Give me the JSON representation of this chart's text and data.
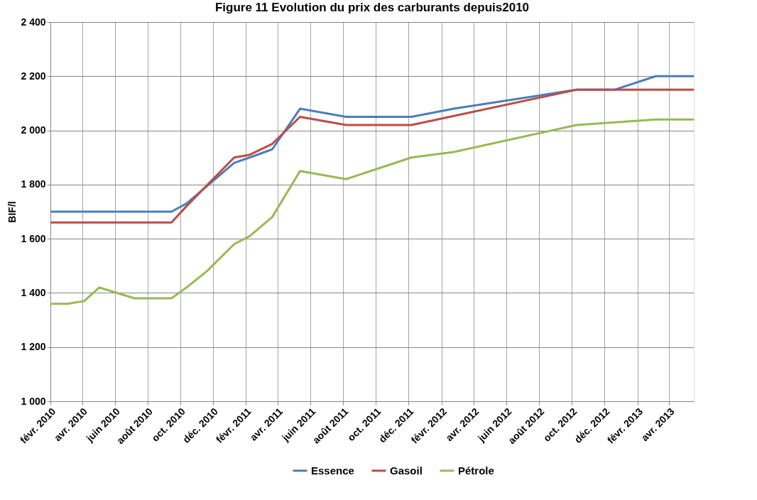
{
  "chart_data": {
    "type": "line",
    "title": "Figure 11 Evolution du prix des carburants depuis2010",
    "ylabel": "BIF/l",
    "xlim": [
      "2010-02-01",
      "2013-05-17"
    ],
    "xticks": [
      {
        "value": "2010-02-01",
        "label": "févr. 2010"
      },
      {
        "value": "2010-04-01",
        "label": "avr. 2010"
      },
      {
        "value": "2010-06-01",
        "label": "juin 2010"
      },
      {
        "value": "2010-08-01",
        "label": "août 2010"
      },
      {
        "value": "2010-10-01",
        "label": "oct. 2010"
      },
      {
        "value": "2010-12-01",
        "label": "déc. 2010"
      },
      {
        "value": "2011-02-01",
        "label": "févr. 2011"
      },
      {
        "value": "2011-04-01",
        "label": "avr. 2011"
      },
      {
        "value": "2011-06-01",
        "label": "juin 2011"
      },
      {
        "value": "2011-08-01",
        "label": "août 2011"
      },
      {
        "value": "2011-10-01",
        "label": "oct. 2011"
      },
      {
        "value": "2011-12-01",
        "label": "déc. 2011"
      },
      {
        "value": "2012-02-01",
        "label": "févr. 2012"
      },
      {
        "value": "2012-04-01",
        "label": "avr. 2012"
      },
      {
        "value": "2012-06-01",
        "label": "juin 2012"
      },
      {
        "value": "2012-08-01",
        "label": "août 2012"
      },
      {
        "value": "2012-10-01",
        "label": "oct. 2012"
      },
      {
        "value": "2012-12-01",
        "label": "déc. 2012"
      },
      {
        "value": "2013-02-01",
        "label": "févr. 2013"
      },
      {
        "value": "2013-04-01",
        "label": "avr. 2013"
      }
    ],
    "ylim": [
      1000,
      2400
    ],
    "yticks": [
      {
        "value": 1000,
        "label": "1 000"
      },
      {
        "value": 1200,
        "label": "1 200"
      },
      {
        "value": 1400,
        "label": "1 400"
      },
      {
        "value": 1600,
        "label": "1 600"
      },
      {
        "value": 1800,
        "label": "1 800"
      },
      {
        "value": 2000,
        "label": "2 000"
      },
      {
        "value": 2200,
        "label": "2 200"
      },
      {
        "value": 2400,
        "label": "2 400"
      }
    ],
    "grid": true,
    "legend": "bottom",
    "marker": "none",
    "line_style": "solid",
    "series": [
      {
        "name": "Essence",
        "color": "#4a7ebb",
        "x": [
          "2010-02-01",
          "2010-09-15",
          "2010-10-13",
          "2011-01-10",
          "2011-02-08",
          "2011-03-22",
          "2011-05-13",
          "2011-08-07",
          "2011-12-07",
          "2012-02-24",
          "2012-10-10",
          "2012-12-20",
          "2013-03-07",
          "2013-05-17"
        ],
        "values": [
          1700,
          1700,
          1730,
          1880,
          1900,
          1930,
          2080,
          2050,
          2050,
          2080,
          2150,
          2150,
          2200,
          2200
        ]
      },
      {
        "name": "Gasoil",
        "color": "#be4b48",
        "x": [
          "2010-02-01",
          "2010-09-15",
          "2010-10-13",
          "2011-01-10",
          "2011-02-08",
          "2011-03-22",
          "2011-05-13",
          "2011-08-07",
          "2011-12-07",
          "2012-10-10",
          "2013-05-17"
        ],
        "values": [
          1660,
          1660,
          1720,
          1900,
          1910,
          1950,
          2050,
          2020,
          2020,
          2150,
          2150
        ]
      },
      {
        "name": "Pétrole",
        "color": "#98b954",
        "x": [
          "2010-02-01",
          "2010-03-05",
          "2010-04-05",
          "2010-05-03",
          "2010-07-08",
          "2010-09-15",
          "2010-10-13",
          "2010-11-20",
          "2011-01-10",
          "2011-02-08",
          "2011-03-22",
          "2011-05-13",
          "2011-08-07",
          "2011-12-07",
          "2012-02-24",
          "2012-10-10",
          "2013-03-07",
          "2013-05-17"
        ],
        "values": [
          1360,
          1360,
          1370,
          1420,
          1380,
          1380,
          1420,
          1480,
          1580,
          1610,
          1680,
          1850,
          1820,
          1900,
          1920,
          2020,
          2040,
          2040
        ]
      }
    ]
  }
}
